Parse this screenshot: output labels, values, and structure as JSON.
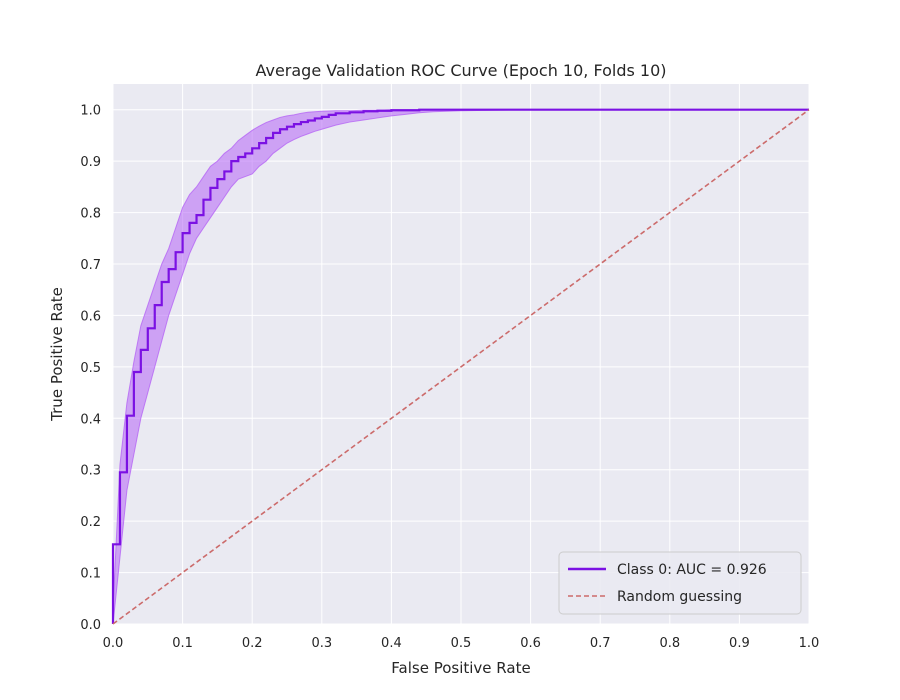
{
  "chart_data": {
    "type": "line",
    "title": "Average Validation ROC Curve (Epoch 10, Folds 10)",
    "xlabel": "False Positive Rate",
    "ylabel": "True Positive Rate",
    "xlim": [
      0,
      1
    ],
    "ylim": [
      0,
      1.05
    ],
    "xticks": [
      "0.0",
      "0.1",
      "0.2",
      "0.3",
      "0.4",
      "0.5",
      "0.6",
      "0.7",
      "0.8",
      "0.9",
      "1.0"
    ],
    "yticks": [
      "0.0",
      "0.1",
      "0.2",
      "0.3",
      "0.4",
      "0.5",
      "0.6",
      "0.7",
      "0.8",
      "0.9",
      "1.0"
    ],
    "grid": true,
    "legend_position": "bottom-right",
    "series": [
      {
        "name": "Class 0: AUC = 0.926",
        "color": "#7B11E3",
        "style": "step-solid",
        "x": [
          0.0,
          0.0,
          0.01,
          0.01,
          0.02,
          0.02,
          0.03,
          0.03,
          0.04,
          0.04,
          0.05,
          0.05,
          0.06,
          0.06,
          0.07,
          0.07,
          0.08,
          0.08,
          0.09,
          0.09,
          0.1,
          0.1,
          0.11,
          0.11,
          0.12,
          0.12,
          0.13,
          0.13,
          0.14,
          0.14,
          0.15,
          0.15,
          0.16,
          0.16,
          0.17,
          0.17,
          0.18,
          0.18,
          0.19,
          0.19,
          0.2,
          0.2,
          0.21,
          0.21,
          0.22,
          0.22,
          0.23,
          0.23,
          0.24,
          0.24,
          0.25,
          0.25,
          0.26,
          0.26,
          0.27,
          0.27,
          0.28,
          0.28,
          0.29,
          0.29,
          0.3,
          0.3,
          0.31,
          0.31,
          0.32,
          0.32,
          0.34,
          0.34,
          0.36,
          0.36,
          0.38,
          0.38,
          0.4,
          0.4,
          0.44,
          0.44,
          1.0
        ],
        "y": [
          0.0,
          0.155,
          0.155,
          0.295,
          0.295,
          0.405,
          0.405,
          0.49,
          0.49,
          0.533,
          0.533,
          0.575,
          0.575,
          0.62,
          0.62,
          0.665,
          0.665,
          0.69,
          0.69,
          0.723,
          0.723,
          0.76,
          0.76,
          0.78,
          0.78,
          0.795,
          0.795,
          0.825,
          0.825,
          0.848,
          0.848,
          0.865,
          0.865,
          0.88,
          0.88,
          0.9,
          0.9,
          0.908,
          0.908,
          0.915,
          0.915,
          0.925,
          0.925,
          0.935,
          0.935,
          0.945,
          0.945,
          0.955,
          0.955,
          0.962,
          0.962,
          0.967,
          0.967,
          0.972,
          0.972,
          0.976,
          0.976,
          0.979,
          0.979,
          0.983,
          0.983,
          0.986,
          0.986,
          0.99,
          0.99,
          0.993,
          0.993,
          0.995,
          0.995,
          0.997,
          0.997,
          0.998,
          0.998,
          0.999,
          0.999,
          1.0,
          1.0
        ]
      },
      {
        "name": "Random guessing",
        "color": "#CC6B6B",
        "style": "dashed",
        "x": [
          0,
          1
        ],
        "y": [
          0,
          1
        ]
      }
    ],
    "band": {
      "color": "#B565F5",
      "x": [
        0,
        0.01,
        0.02,
        0.03,
        0.04,
        0.05,
        0.06,
        0.07,
        0.08,
        0.09,
        0.1,
        0.11,
        0.12,
        0.13,
        0.14,
        0.15,
        0.16,
        0.17,
        0.18,
        0.19,
        0.2,
        0.21,
        0.22,
        0.23,
        0.24,
        0.25,
        0.26,
        0.27,
        0.28,
        0.29,
        0.3,
        0.32,
        0.34,
        0.36,
        0.38,
        0.4,
        0.42,
        0.44,
        0.46,
        0.5,
        0.6,
        0.8,
        1.0
      ],
      "upper": [
        0.03,
        0.31,
        0.43,
        0.51,
        0.58,
        0.62,
        0.66,
        0.7,
        0.73,
        0.77,
        0.81,
        0.835,
        0.85,
        0.87,
        0.89,
        0.9,
        0.915,
        0.925,
        0.94,
        0.95,
        0.96,
        0.968,
        0.975,
        0.98,
        0.985,
        0.988,
        0.99,
        0.993,
        0.995,
        0.996,
        0.997,
        0.998,
        0.998,
        0.999,
        0.999,
        1.0,
        1.0,
        1.0,
        1.0,
        1.0,
        1.0,
        1.0,
        1.0
      ],
      "lower": [
        0.0,
        0.13,
        0.26,
        0.33,
        0.4,
        0.45,
        0.5,
        0.55,
        0.6,
        0.64,
        0.68,
        0.72,
        0.75,
        0.77,
        0.79,
        0.81,
        0.83,
        0.85,
        0.865,
        0.87,
        0.875,
        0.89,
        0.9,
        0.915,
        0.925,
        0.935,
        0.942,
        0.948,
        0.953,
        0.958,
        0.962,
        0.97,
        0.976,
        0.98,
        0.984,
        0.988,
        0.991,
        0.994,
        0.996,
        0.998,
        1.0,
        1.0,
        1.0
      ]
    }
  }
}
